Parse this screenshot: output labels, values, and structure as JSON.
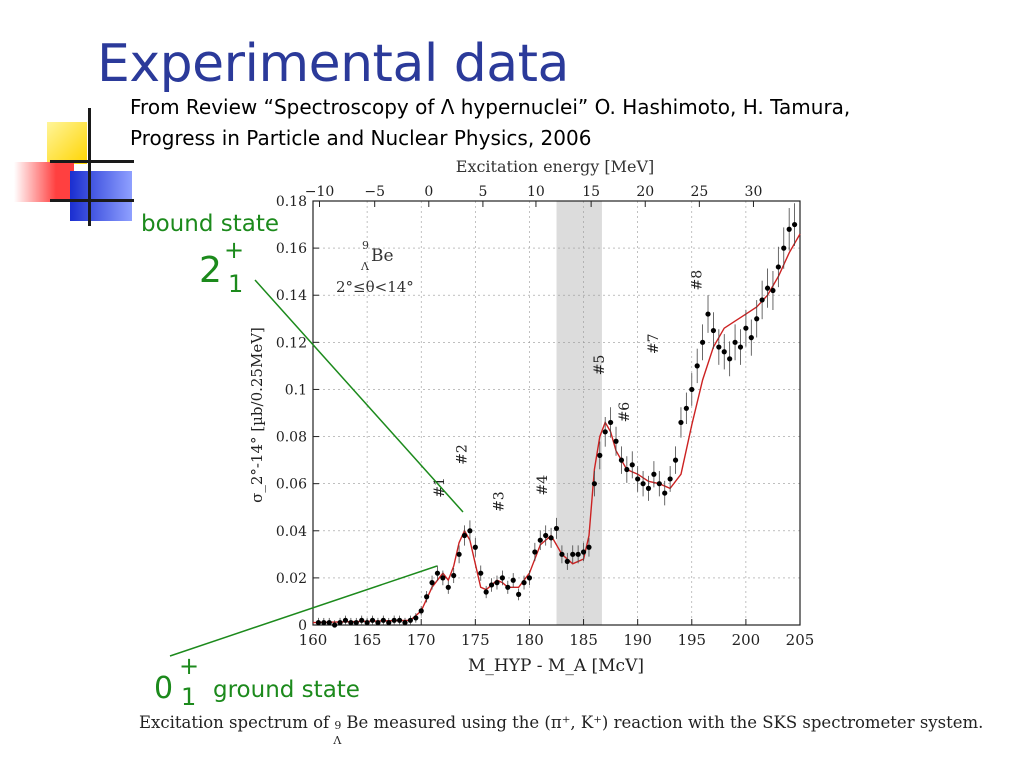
{
  "slide": {
    "title": "Experimental data",
    "reference_line1": "From Review “Spectroscopy of Λ hypernuclei” O. Hashimoto, H. Tamura,",
    "reference_line2": "Progress in Particle and Nuclear Physics, 2006",
    "caption_pre": "Excitation spectrum of ",
    "caption_sup": "9",
    "caption_sub": "Λ",
    "caption_post": "Be measured using the (π⁺, K⁺) reaction with the SKS spectrometer system.",
    "annotations": {
      "bound_state": "bound state",
      "ground_state": "ground state",
      "state_2_main": "2",
      "state_2_sup": "+",
      "state_2_sub": "1",
      "state_0_main": "0",
      "state_0_sup": "+",
      "state_0_sub": "1"
    },
    "colors": {
      "title": "#2b3a9a",
      "annotation_green": "#1c8a1c",
      "fit_red": "#cc2222",
      "data_black": "#000000",
      "shade": "#dcdcdc",
      "deco_yellow": "#ffdd00",
      "deco_red": "#ff3333",
      "deco_blue": "#2233cc"
    }
  },
  "chart_data": {
    "type": "scatter",
    "title_top_axis": "Excitation energy [MeV]",
    "xlabel": "M_HYP - M_A [McV]",
    "ylabel": "σ_2°-14° [µb/0.25MeV]",
    "inset_nucleus": "Be",
    "inset_nucleus_sup": "9",
    "inset_nucleus_sub": "Λ",
    "inset_angle": "2°≤θ<14°",
    "xlim": [
      160,
      205
    ],
    "ylim": [
      0,
      0.18
    ],
    "x_ticks": [
      "160",
      "165",
      "170",
      "175",
      "180",
      "185",
      "190",
      "195",
      "200",
      "205"
    ],
    "y_ticks": [
      "0",
      "0.02",
      "0.04",
      "0.06",
      "0.08",
      "0.1",
      "0.12",
      "0.14",
      "0.16",
      "0.18"
    ],
    "top_ticks": [
      "−10",
      "−5",
      "0",
      "5",
      "10",
      "15",
      "20",
      "25",
      "30"
    ],
    "top_tick_positions": [
      160.6,
      165.7,
      170.7,
      175.7,
      180.6,
      185.7,
      190.7,
      195.7,
      200.7
    ],
    "grid": true,
    "shaded_band": [
      182.5,
      186.7
    ],
    "peak_labels": [
      {
        "label": "#1",
        "x": 172.1,
        "y": 0.054
      },
      {
        "label": "#2",
        "x": 174.2,
        "y": 0.068
      },
      {
        "label": "#3",
        "x": 177.6,
        "y": 0.048
      },
      {
        "label": "#4",
        "x": 181.6,
        "y": 0.055
      },
      {
        "label": "#5",
        "x": 186.9,
        "y": 0.106
      },
      {
        "label": "#6",
        "x": 189.2,
        "y": 0.086
      },
      {
        "label": "#7",
        "x": 191.9,
        "y": 0.115
      },
      {
        "label": "#8",
        "x": 195.9,
        "y": 0.142
      }
    ],
    "series": [
      {
        "name": "",
        "style": "points",
        "x": [
          160.5,
          161,
          161.5,
          162,
          162.5,
          163,
          163.5,
          164,
          164.5,
          165,
          165.5,
          166,
          166.5,
          167,
          167.5,
          168,
          168.5,
          169,
          169.5,
          170,
          170.5,
          171,
          171.5,
          172,
          172.5,
          173,
          173.5,
          174,
          174.5,
          175,
          175.5,
          176,
          176.5,
          177,
          177.5,
          178,
          178.5,
          179,
          179.5,
          180,
          180.5,
          181,
          181.5,
          182,
          182.5,
          183,
          183.5,
          184,
          184.5,
          185,
          185.5,
          186,
          186.5,
          187,
          187.5,
          188,
          188.5,
          189,
          189.5,
          190,
          190.5,
          191,
          191.5,
          192,
          192.5,
          193,
          193.5,
          194,
          194.5,
          195,
          195.5,
          196,
          196.5,
          197,
          197.5,
          198,
          198.5,
          199,
          199.5,
          200,
          200.5,
          201,
          201.5,
          202,
          202.5,
          203,
          203.5,
          204,
          204.5
        ],
        "y": [
          0.001,
          0.001,
          0.001,
          0,
          0.001,
          0.002,
          0.001,
          0.001,
          0.002,
          0.001,
          0.002,
          0.001,
          0.002,
          0.001,
          0.002,
          0.002,
          0.001,
          0.002,
          0.003,
          0.006,
          0.012,
          0.018,
          0.022,
          0.02,
          0.016,
          0.021,
          0.03,
          0.038,
          0.04,
          0.033,
          0.022,
          0.014,
          0.017,
          0.018,
          0.02,
          0.016,
          0.019,
          0.013,
          0.018,
          0.02,
          0.031,
          0.036,
          0.038,
          0.037,
          0.041,
          0.03,
          0.027,
          0.03,
          0.03,
          0.031,
          0.033,
          0.06,
          0.072,
          0.082,
          0.086,
          0.078,
          0.07,
          0.066,
          0.068,
          0.062,
          0.06,
          0.058,
          0.064,
          0.06,
          0.056,
          0.062,
          0.07,
          0.086,
          0.092,
          0.1,
          0.11,
          0.12,
          0.132,
          0.125,
          0.118,
          0.116,
          0.113,
          0.12,
          0.118,
          0.126,
          0.122,
          0.13,
          0.138,
          0.143,
          0.142,
          0.152,
          0.16,
          0.168,
          0.17
        ]
      },
      {
        "name": "",
        "style": "fit",
        "x": [
          160,
          169,
          170,
          171,
          172,
          172.5,
          173,
          173.5,
          174,
          174.5,
          175,
          175.5,
          176,
          176.5,
          177,
          177.5,
          178,
          179,
          180,
          181,
          182,
          183,
          184,
          185,
          185.5,
          186,
          186.5,
          187,
          187.5,
          188,
          189,
          190,
          191,
          192,
          193,
          194,
          195,
          196,
          197,
          198,
          199,
          200,
          201,
          202,
          203,
          204,
          205
        ],
        "y": [
          0.001,
          0.002,
          0.006,
          0.016,
          0.022,
          0.019,
          0.025,
          0.035,
          0.04,
          0.036,
          0.026,
          0.016,
          0.015,
          0.017,
          0.019,
          0.018,
          0.016,
          0.016,
          0.022,
          0.034,
          0.038,
          0.03,
          0.026,
          0.028,
          0.038,
          0.066,
          0.08,
          0.086,
          0.082,
          0.074,
          0.066,
          0.064,
          0.061,
          0.06,
          0.058,
          0.064,
          0.085,
          0.104,
          0.118,
          0.126,
          0.129,
          0.132,
          0.135,
          0.14,
          0.148,
          0.158,
          0.166
        ]
      }
    ]
  }
}
